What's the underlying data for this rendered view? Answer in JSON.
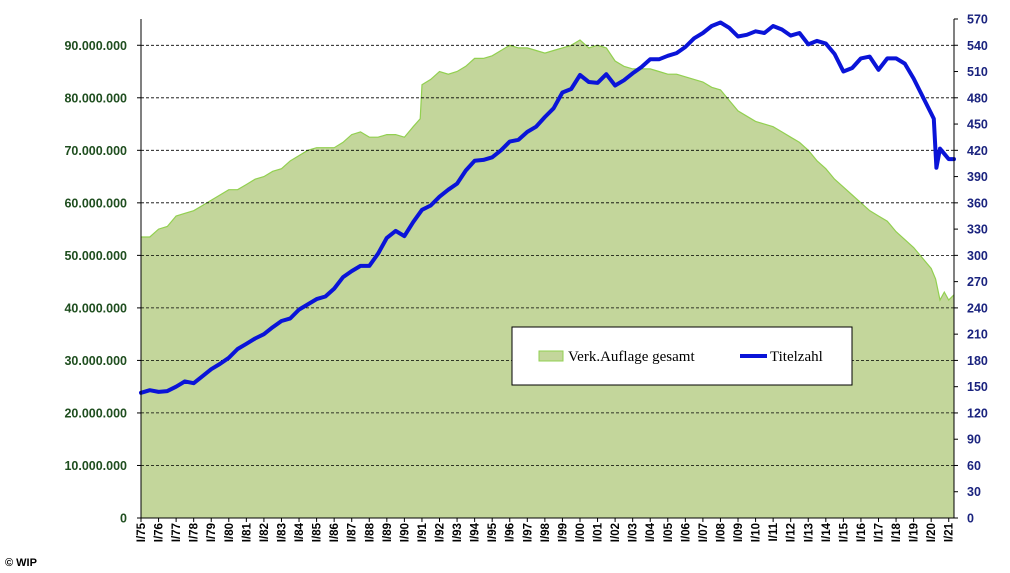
{
  "copyright": "© WIP",
  "chart_data": {
    "type": "area+line",
    "title": "",
    "xlabel": "",
    "ylabel_left": "",
    "ylabel_right": "",
    "x_tick_labels": [
      "I/75",
      "I/76",
      "I/77",
      "I/78",
      "I/79",
      "I/80",
      "I/81",
      "I/82",
      "I/83",
      "I/84",
      "I/85",
      "I/86",
      "I/87",
      "I/88",
      "I/89",
      "I/90",
      "I/91",
      "I/92",
      "I/93",
      "I/94",
      "I/95",
      "I/96",
      "I/97",
      "I/98",
      "I/99",
      "I/00",
      "I/01",
      "I/02",
      "I/03",
      "I/04",
      "I/05",
      "I/06",
      "I/07",
      "I/08",
      "I/09",
      "I/10",
      "I/11",
      "I/12",
      "I/13",
      "I/14",
      "I/15",
      "I/16",
      "I/17",
      "I/18",
      "I/19",
      "I/20",
      "I/21"
    ],
    "left_axis": {
      "ylim": [
        0,
        95000000
      ],
      "ticks": [
        0,
        10000000,
        20000000,
        30000000,
        40000000,
        50000000,
        60000000,
        70000000,
        80000000,
        90000000
      ],
      "tick_labels": [
        "0",
        "10.000.000",
        "20.000.000",
        "30.000.000",
        "40.000.000",
        "50.000.000",
        "60.000.000",
        "70.000.000",
        "80.000.000",
        "90.000.000"
      ]
    },
    "right_axis": {
      "ylim": [
        0,
        570
      ],
      "ticks": [
        0,
        30,
        60,
        90,
        120,
        150,
        180,
        210,
        240,
        270,
        300,
        330,
        360,
        390,
        420,
        450,
        480,
        510,
        540,
        570
      ],
      "tick_labels": [
        "0",
        "30",
        "60",
        "90",
        "120",
        "150",
        "180",
        "210",
        "240",
        "270",
        "300",
        "330",
        "360",
        "390",
        "420",
        "450",
        "480",
        "510",
        "540",
        "570"
      ]
    },
    "grid": "horizontal-dashed",
    "legend_position": "center-right",
    "series": [
      {
        "name": "Verk.Auflage gesamt",
        "kind": "area",
        "axis": "left",
        "color": "#c3d69b",
        "edge_color": "#92d050",
        "x": [
          1975.0,
          1975.5,
          1976.0,
          1976.5,
          1977.0,
          1977.5,
          1978.0,
          1978.5,
          1979.0,
          1979.5,
          1980.0,
          1980.5,
          1981.0,
          1981.5,
          1982.0,
          1982.5,
          1983.0,
          1983.5,
          1984.0,
          1984.5,
          1985.0,
          1985.5,
          1986.0,
          1986.5,
          1987.0,
          1987.5,
          1988.0,
          1988.5,
          1989.0,
          1989.5,
          1990.0,
          1990.5,
          1990.9,
          1991.0,
          1991.5,
          1992.0,
          1992.5,
          1993.0,
          1993.5,
          1994.0,
          1994.5,
          1995.0,
          1995.5,
          1996.0,
          1996.5,
          1997.0,
          1997.5,
          1998.0,
          1998.5,
          1999.0,
          1999.5,
          2000.0,
          2000.5,
          2001.0,
          2001.5,
          2002.0,
          2002.5,
          2003.0,
          2003.5,
          2004.0,
          2004.5,
          2005.0,
          2005.5,
          2006.0,
          2006.5,
          2007.0,
          2007.5,
          2008.0,
          2008.5,
          2009.0,
          2009.5,
          2010.0,
          2010.5,
          2011.0,
          2011.5,
          2012.0,
          2012.5,
          2013.0,
          2013.5,
          2014.0,
          2014.5,
          2015.0,
          2015.5,
          2016.0,
          2016.5,
          2017.0,
          2017.5,
          2018.0,
          2018.5,
          2019.0,
          2019.5,
          2020.0,
          2020.25,
          2020.5,
          2020.75,
          2021.0,
          2021.3
        ],
        "values": [
          53500000,
          53500000,
          55000000,
          55500000,
          57500000,
          58000000,
          58500000,
          59500000,
          60500000,
          61500000,
          62500000,
          62500000,
          63500000,
          64500000,
          65000000,
          66000000,
          66500000,
          68000000,
          69000000,
          70000000,
          70500000,
          70500000,
          70500000,
          71500000,
          73000000,
          73500000,
          72500000,
          72500000,
          73000000,
          73000000,
          72500000,
          74500000,
          76000000,
          82500000,
          83500000,
          85000000,
          84500000,
          85000000,
          86000000,
          87500000,
          87500000,
          88000000,
          89000000,
          90000000,
          89500000,
          89500000,
          89000000,
          88500000,
          89000000,
          89500000,
          90000000,
          91000000,
          89500000,
          90000000,
          89500000,
          87000000,
          86000000,
          85500000,
          85500000,
          85500000,
          85000000,
          84500000,
          84500000,
          84000000,
          83500000,
          83000000,
          82000000,
          81500000,
          79500000,
          77500000,
          76500000,
          75500000,
          75000000,
          74500000,
          73500000,
          72500000,
          71500000,
          70000000,
          68000000,
          66500000,
          64500000,
          63000000,
          61500000,
          60000000,
          58500000,
          57500000,
          56500000,
          54500000,
          53000000,
          51500000,
          49500000,
          47500000,
          45500000,
          41500000,
          43000000,
          41500000,
          42500000
        ]
      },
      {
        "name": "Titelzahl",
        "kind": "line",
        "axis": "right",
        "color": "#0a14d8",
        "x": [
          1975.0,
          1975.5,
          1976.0,
          1976.5,
          1977.0,
          1977.5,
          1978.0,
          1978.5,
          1979.0,
          1979.5,
          1980.0,
          1980.5,
          1981.0,
          1981.5,
          1982.0,
          1982.5,
          1983.0,
          1983.5,
          1984.0,
          1984.5,
          1985.0,
          1985.5,
          1986.0,
          1986.5,
          1987.0,
          1987.5,
          1988.0,
          1988.5,
          1989.0,
          1989.5,
          1990.0,
          1990.5,
          1991.0,
          1991.5,
          1992.0,
          1992.5,
          1993.0,
          1993.5,
          1994.0,
          1994.5,
          1995.0,
          1995.5,
          1996.0,
          1996.5,
          1997.0,
          1997.5,
          1998.0,
          1998.5,
          1999.0,
          1999.5,
          2000.0,
          2000.5,
          2001.0,
          2001.5,
          2002.0,
          2002.5,
          2003.0,
          2003.5,
          2004.0,
          2004.5,
          2005.0,
          2005.5,
          2006.0,
          2006.5,
          2007.0,
          2007.5,
          2008.0,
          2008.5,
          2009.0,
          2009.5,
          2010.0,
          2010.5,
          2011.0,
          2011.5,
          2012.0,
          2012.5,
          2013.0,
          2013.5,
          2014.0,
          2014.5,
          2015.0,
          2015.5,
          2016.0,
          2016.5,
          2017.0,
          2017.5,
          2018.0,
          2018.5,
          2019.0,
          2019.5,
          2020.0,
          2020.15,
          2020.3,
          2020.5,
          2020.75,
          2021.0,
          2021.3
        ],
        "values": [
          143,
          146,
          144,
          145,
          150,
          156,
          154,
          162,
          170,
          176,
          183,
          193,
          199,
          205,
          210,
          218,
          225,
          228,
          238,
          244,
          250,
          253,
          262,
          275,
          282,
          288,
          288,
          302,
          320,
          328,
          322,
          338,
          352,
          357,
          367,
          375,
          382,
          397,
          408,
          409,
          412,
          420,
          430,
          432,
          441,
          447,
          458,
          468,
          486,
          490,
          506,
          498,
          497,
          507,
          494,
          500,
          508,
          515,
          524,
          524,
          528,
          531,
          538,
          548,
          554,
          562,
          566,
          560,
          550,
          552,
          556,
          554,
          562,
          558,
          551,
          554,
          541,
          545,
          542,
          530,
          510,
          514,
          525,
          527,
          512,
          525,
          525,
          519,
          502,
          482,
          462,
          456,
          400,
          422,
          416,
          410,
          410
        ]
      }
    ]
  }
}
